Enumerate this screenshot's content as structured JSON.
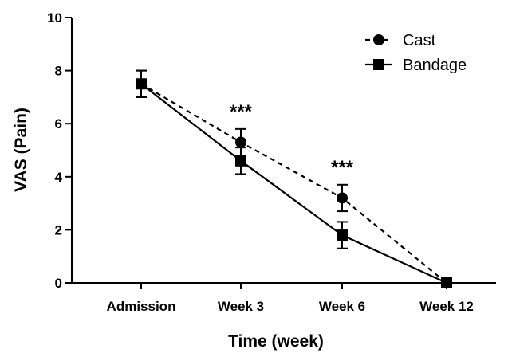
{
  "chart_data": {
    "type": "line",
    "categories": [
      "Admission",
      "Week 3",
      "Week 6",
      "Week 12"
    ],
    "xlabel": "Time (week)",
    "ylabel": "VAS (Pain)",
    "ylim": [
      0,
      10
    ],
    "yticks": [
      "0",
      "2",
      "4",
      "6",
      "8",
      "10"
    ],
    "grid": false,
    "legend_position": "top-right",
    "series": [
      {
        "name": "Cast",
        "marker": "circle",
        "line_style": "dashed",
        "color": "#000000",
        "values": [
          7.5,
          5.3,
          3.2,
          0
        ],
        "error": [
          0.5,
          0.5,
          0.5,
          0
        ]
      },
      {
        "name": "Bandage",
        "marker": "square",
        "line_style": "solid",
        "color": "#000000",
        "values": [
          7.5,
          4.6,
          1.8,
          0
        ],
        "error": [
          0.5,
          0.5,
          0.5,
          0
        ]
      }
    ],
    "annotations": [
      {
        "category": "Week 3",
        "text": "***"
      },
      {
        "category": "Week 6",
        "text": "***"
      }
    ]
  }
}
